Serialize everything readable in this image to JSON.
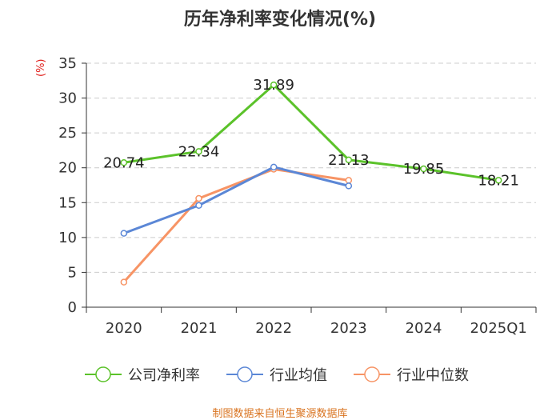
{
  "chart_data": {
    "type": "line",
    "title": "历年净利率变化情况(%)",
    "ylabel": "(%)",
    "xlabel": "",
    "categories": [
      "2020",
      "2021",
      "2022",
      "2023",
      "2024",
      "2025Q1"
    ],
    "ylim": [
      0,
      35
    ],
    "yticks": [
      "0",
      "5",
      "10",
      "15",
      "20",
      "25",
      "30",
      "35"
    ],
    "grid": "horizontal dashed",
    "legend_position": "bottom",
    "series": [
      {
        "name": "公司净利率",
        "color": "#5bc22a",
        "values": [
          20.74,
          22.34,
          31.89,
          21.13,
          19.85,
          18.21
        ],
        "labels": [
          "20.74",
          "22.34",
          "31.89",
          "21.13",
          "19.85",
          "18.21"
        ]
      },
      {
        "name": "行业均值",
        "color": "#5b87d6",
        "values": [
          10.6,
          14.6,
          20.1,
          17.4,
          null,
          null
        ]
      },
      {
        "name": "行业中位数",
        "color": "#f79465",
        "values": [
          3.6,
          15.6,
          19.8,
          18.2,
          null,
          null
        ]
      }
    ]
  },
  "footer": {
    "source": "制图数据来自恒生聚源数据库"
  }
}
